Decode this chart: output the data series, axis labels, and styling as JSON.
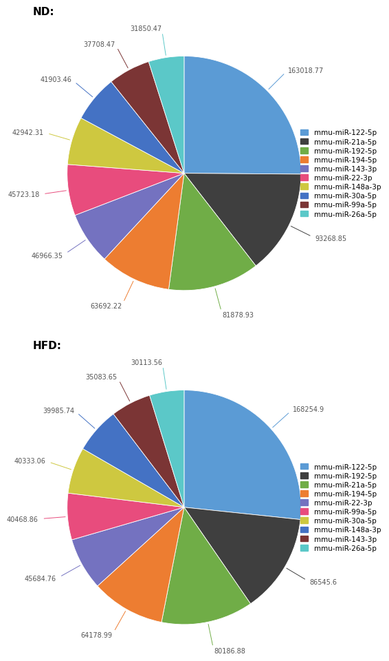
{
  "nd": {
    "values": [
      163018.77,
      93268.85,
      81878.93,
      63692.22,
      46966.35,
      45723.18,
      42942.31,
      41903.46,
      37708.47,
      31850.47
    ],
    "colors": [
      "#5B9BD5",
      "#3F3F3F",
      "#70AD47",
      "#ED7D31",
      "#7472C0",
      "#E84C7D",
      "#CEC840",
      "#4472C4",
      "#7B3535",
      "#5BC8C8"
    ],
    "legend_labels": [
      "mmu-miR-122-5p",
      "mmu-miR-21a-5p",
      "mmu-miR-192-5p",
      "mmu-miR-194-5p",
      "mmu-miR-143-3p",
      "mmu-miR-22-3p",
      "mmu-miR-148a-3p",
      "mmu-miR-30a-5p",
      "mmu-miR-99a-5p",
      "mmu-miR-26a-5p"
    ],
    "legend_colors": [
      "#5B9BD5",
      "#3F3F3F",
      "#70AD47",
      "#ED7D31",
      "#7472C0",
      "#E84C7D",
      "#CEC840",
      "#4472C4",
      "#7B3535",
      "#5BC8C8"
    ]
  },
  "hfd": {
    "values": [
      168254.9,
      86545.6,
      80186.88,
      64178.99,
      45684.76,
      40468.86,
      40333.06,
      39985.74,
      35083.65,
      30113.56
    ],
    "colors": [
      "#5B9BD5",
      "#3F3F3F",
      "#70AD47",
      "#ED7D31",
      "#7472C0",
      "#E84C7D",
      "#CEC840",
      "#4472C4",
      "#7B3535",
      "#5BC8C8"
    ],
    "legend_labels": [
      "mmu-miR-122-5p",
      "mmu-miR-192-5p",
      "mmu-miR-21a-5p",
      "mmu-miR-194-5p",
      "mmu-miR-22-3p",
      "mmu-miR-99a-5p",
      "mmu-miR-30a-5p",
      "mmu-miR-148a-3p",
      "mmu-miR-143-3p",
      "mmu-miR-26a-5p"
    ],
    "legend_colors": [
      "#5B9BD5",
      "#3F3F3F",
      "#70AD47",
      "#ED7D31",
      "#7472C0",
      "#E84C7D",
      "#CEC840",
      "#4472C4",
      "#7B3535",
      "#5BC8C8"
    ]
  },
  "background": "#FFFFFF",
  "label_fontsize": 7.0,
  "title_fontsize": 11,
  "legend_fontsize": 7.5
}
